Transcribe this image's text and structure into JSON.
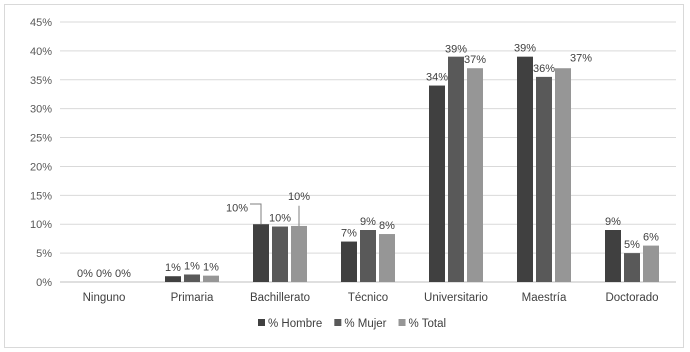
{
  "chart_data": {
    "type": "bar",
    "categories": [
      "Ninguno",
      "Primaria",
      "Bachillerato",
      "Técnico",
      "Universitario",
      "Maestría",
      "Doctorado"
    ],
    "series": [
      {
        "name": "% Hombre",
        "color": "#404040",
        "values": [
          0,
          1,
          10,
          7,
          34,
          39,
          9
        ],
        "labels": [
          "0%",
          "1%",
          "10%",
          "7%",
          "34%",
          "39%",
          "9%"
        ]
      },
      {
        "name": "% Mujer",
        "color": "#595959",
        "values": [
          0,
          1.3,
          9.6,
          9,
          39,
          35.5,
          5
        ],
        "labels": [
          "0%",
          "1%",
          "10%",
          "9%",
          "39%",
          "36%",
          "5%"
        ]
      },
      {
        "name": "% Total",
        "color": "#969696",
        "values": [
          0,
          1.1,
          9.7,
          8.3,
          37,
          37,
          6.3
        ],
        "labels": [
          "0%",
          "1%",
          "10%",
          "8%",
          "37%",
          "37%",
          "6%"
        ]
      }
    ],
    "y_ticks": [
      "0%",
      "5%",
      "10%",
      "15%",
      "20%",
      "25%",
      "30%",
      "35%",
      "40%",
      "45%"
    ],
    "ylim": [
      0,
      45
    ],
    "grid": true,
    "legend_position": "bottom"
  }
}
